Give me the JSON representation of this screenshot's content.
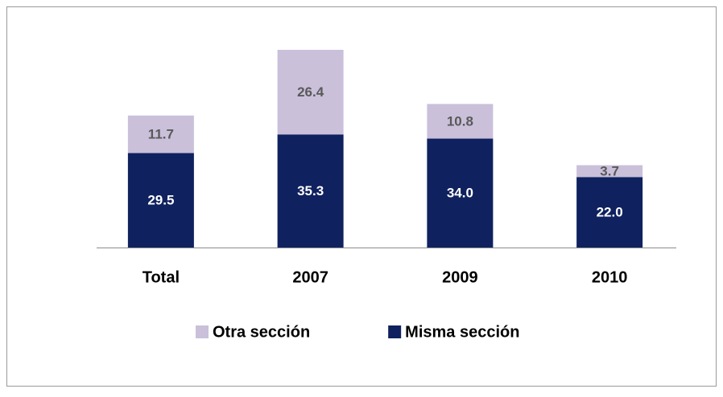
{
  "chart_data": {
    "type": "bar",
    "stacked": true,
    "categories": [
      "Total",
      "2007",
      "2009",
      "2010"
    ],
    "series": [
      {
        "name": "Misma sección",
        "color": "#0f215e",
        "label_color": "#ffffff",
        "values": [
          29.5,
          35.3,
          34.0,
          22.0
        ],
        "value_labels": [
          "29.5",
          "35.3",
          "34.0",
          "22.0"
        ]
      },
      {
        "name": "Otra sección",
        "color": "#cac0da",
        "label_color": "#595959",
        "values": [
          11.7,
          26.4,
          10.8,
          3.7
        ],
        "value_labels": [
          "11.7",
          "26.4",
          "10.8",
          "3.7"
        ]
      }
    ],
    "legend": "bottom"
  }
}
